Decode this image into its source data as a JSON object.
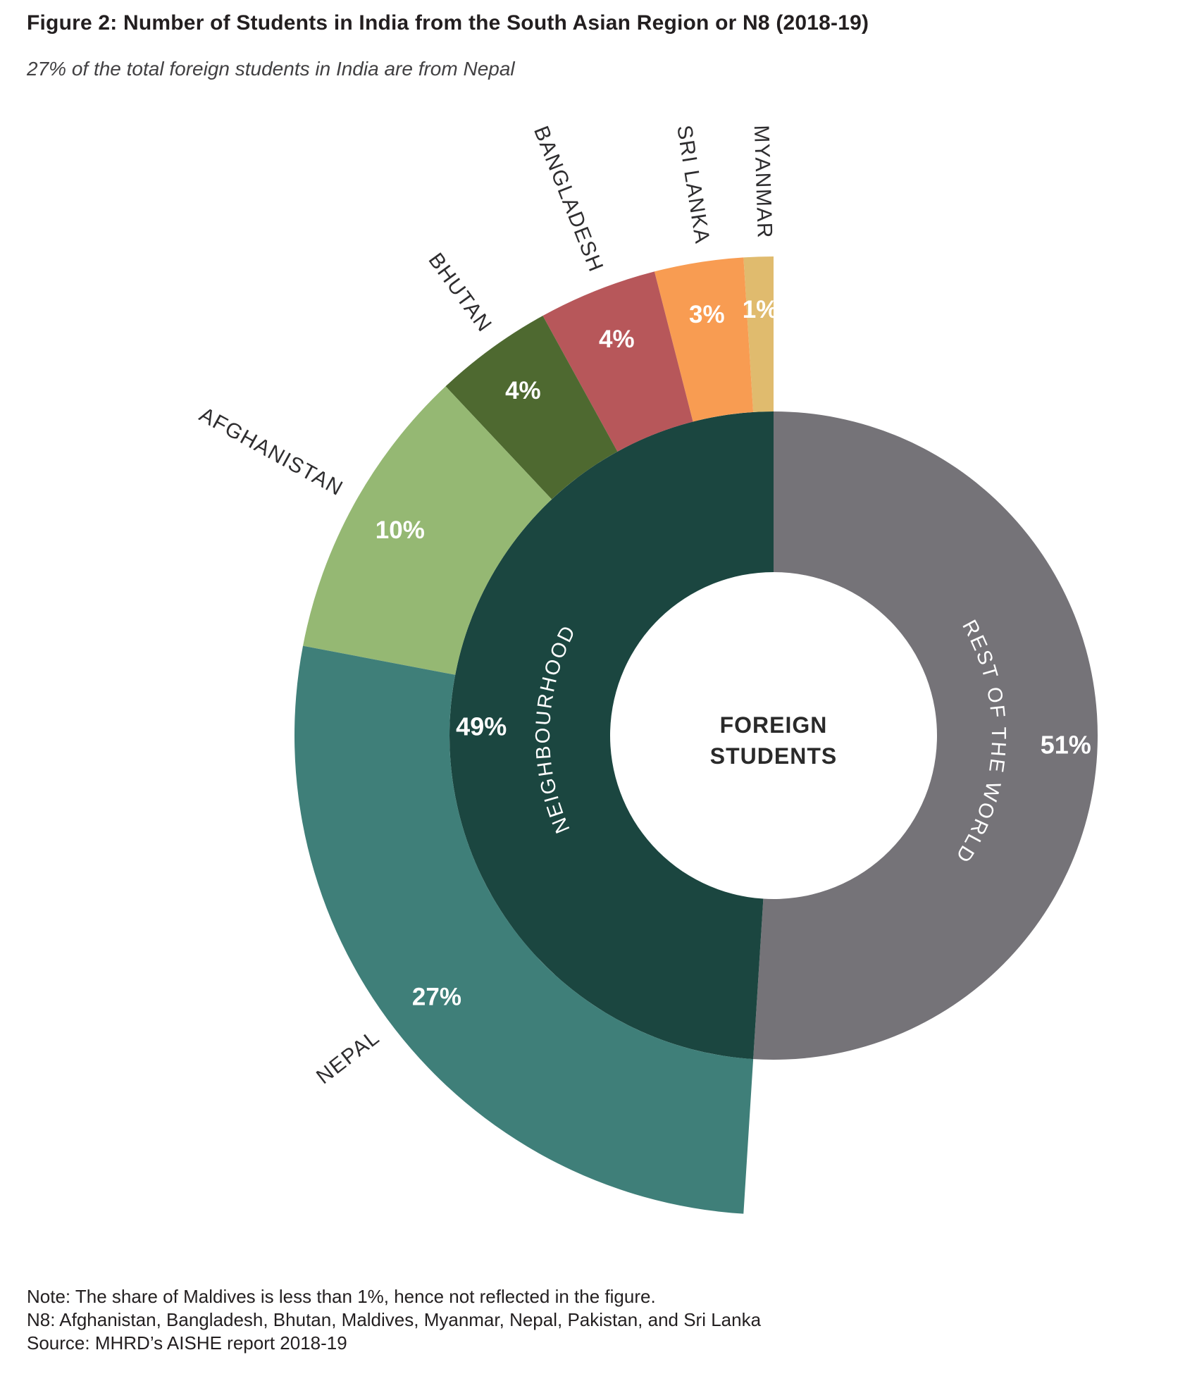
{
  "title": "Figure 2: Number of Students in India from the South Asian Region or N8 (2018-19)",
  "subtitle": "27% of the total foreign students in India are from Nepal",
  "notes": {
    "note": "Note: The share of Maldives is less than 1%, hence not reflected in the figure.",
    "n8": "N8: Afghanistan, Bangladesh, Bhutan, Maldives, Myanmar, Nepal, Pakistan, and Sri Lanka",
    "source": "Source: MHRD’s AISHE report 2018-19"
  },
  "chart_data": {
    "type": "sunburst",
    "title": "Number of Students in India from the South Asian Region or N8 (2018-19)",
    "unit": "%",
    "center_label_line1": "FOREIGN",
    "center_label_line2": "STUDENTS",
    "legend_position": "labels-on-chart",
    "inner_ring": {
      "start_angle_deg": 0,
      "direction": "clockwise-from-top",
      "segments": [
        {
          "label": "REST OF THE WORLD",
          "value": 51,
          "color": "#757378"
        },
        {
          "label": "NEIGHBOURHOOD",
          "value": 49,
          "color": "#1B4640"
        }
      ]
    },
    "outer_ring": {
      "start_angle_deg": 0,
      "direction": "counterclockwise-from-top",
      "segments": [
        {
          "label": "MYANMAR",
          "value": 1,
          "color": "#E0BB6E"
        },
        {
          "label": "SRI LANKA",
          "value": 3,
          "color": "#F89C52"
        },
        {
          "label": "BANGLADESH",
          "value": 4,
          "color": "#B7575A"
        },
        {
          "label": "BHUTAN",
          "value": 4,
          "color": "#4E6930"
        },
        {
          "label": "AFGHANISTAN",
          "value": 10,
          "color": "#95B873"
        },
        {
          "label": "NEPAL",
          "value": 27,
          "color": "#3F7F79"
        }
      ]
    }
  }
}
